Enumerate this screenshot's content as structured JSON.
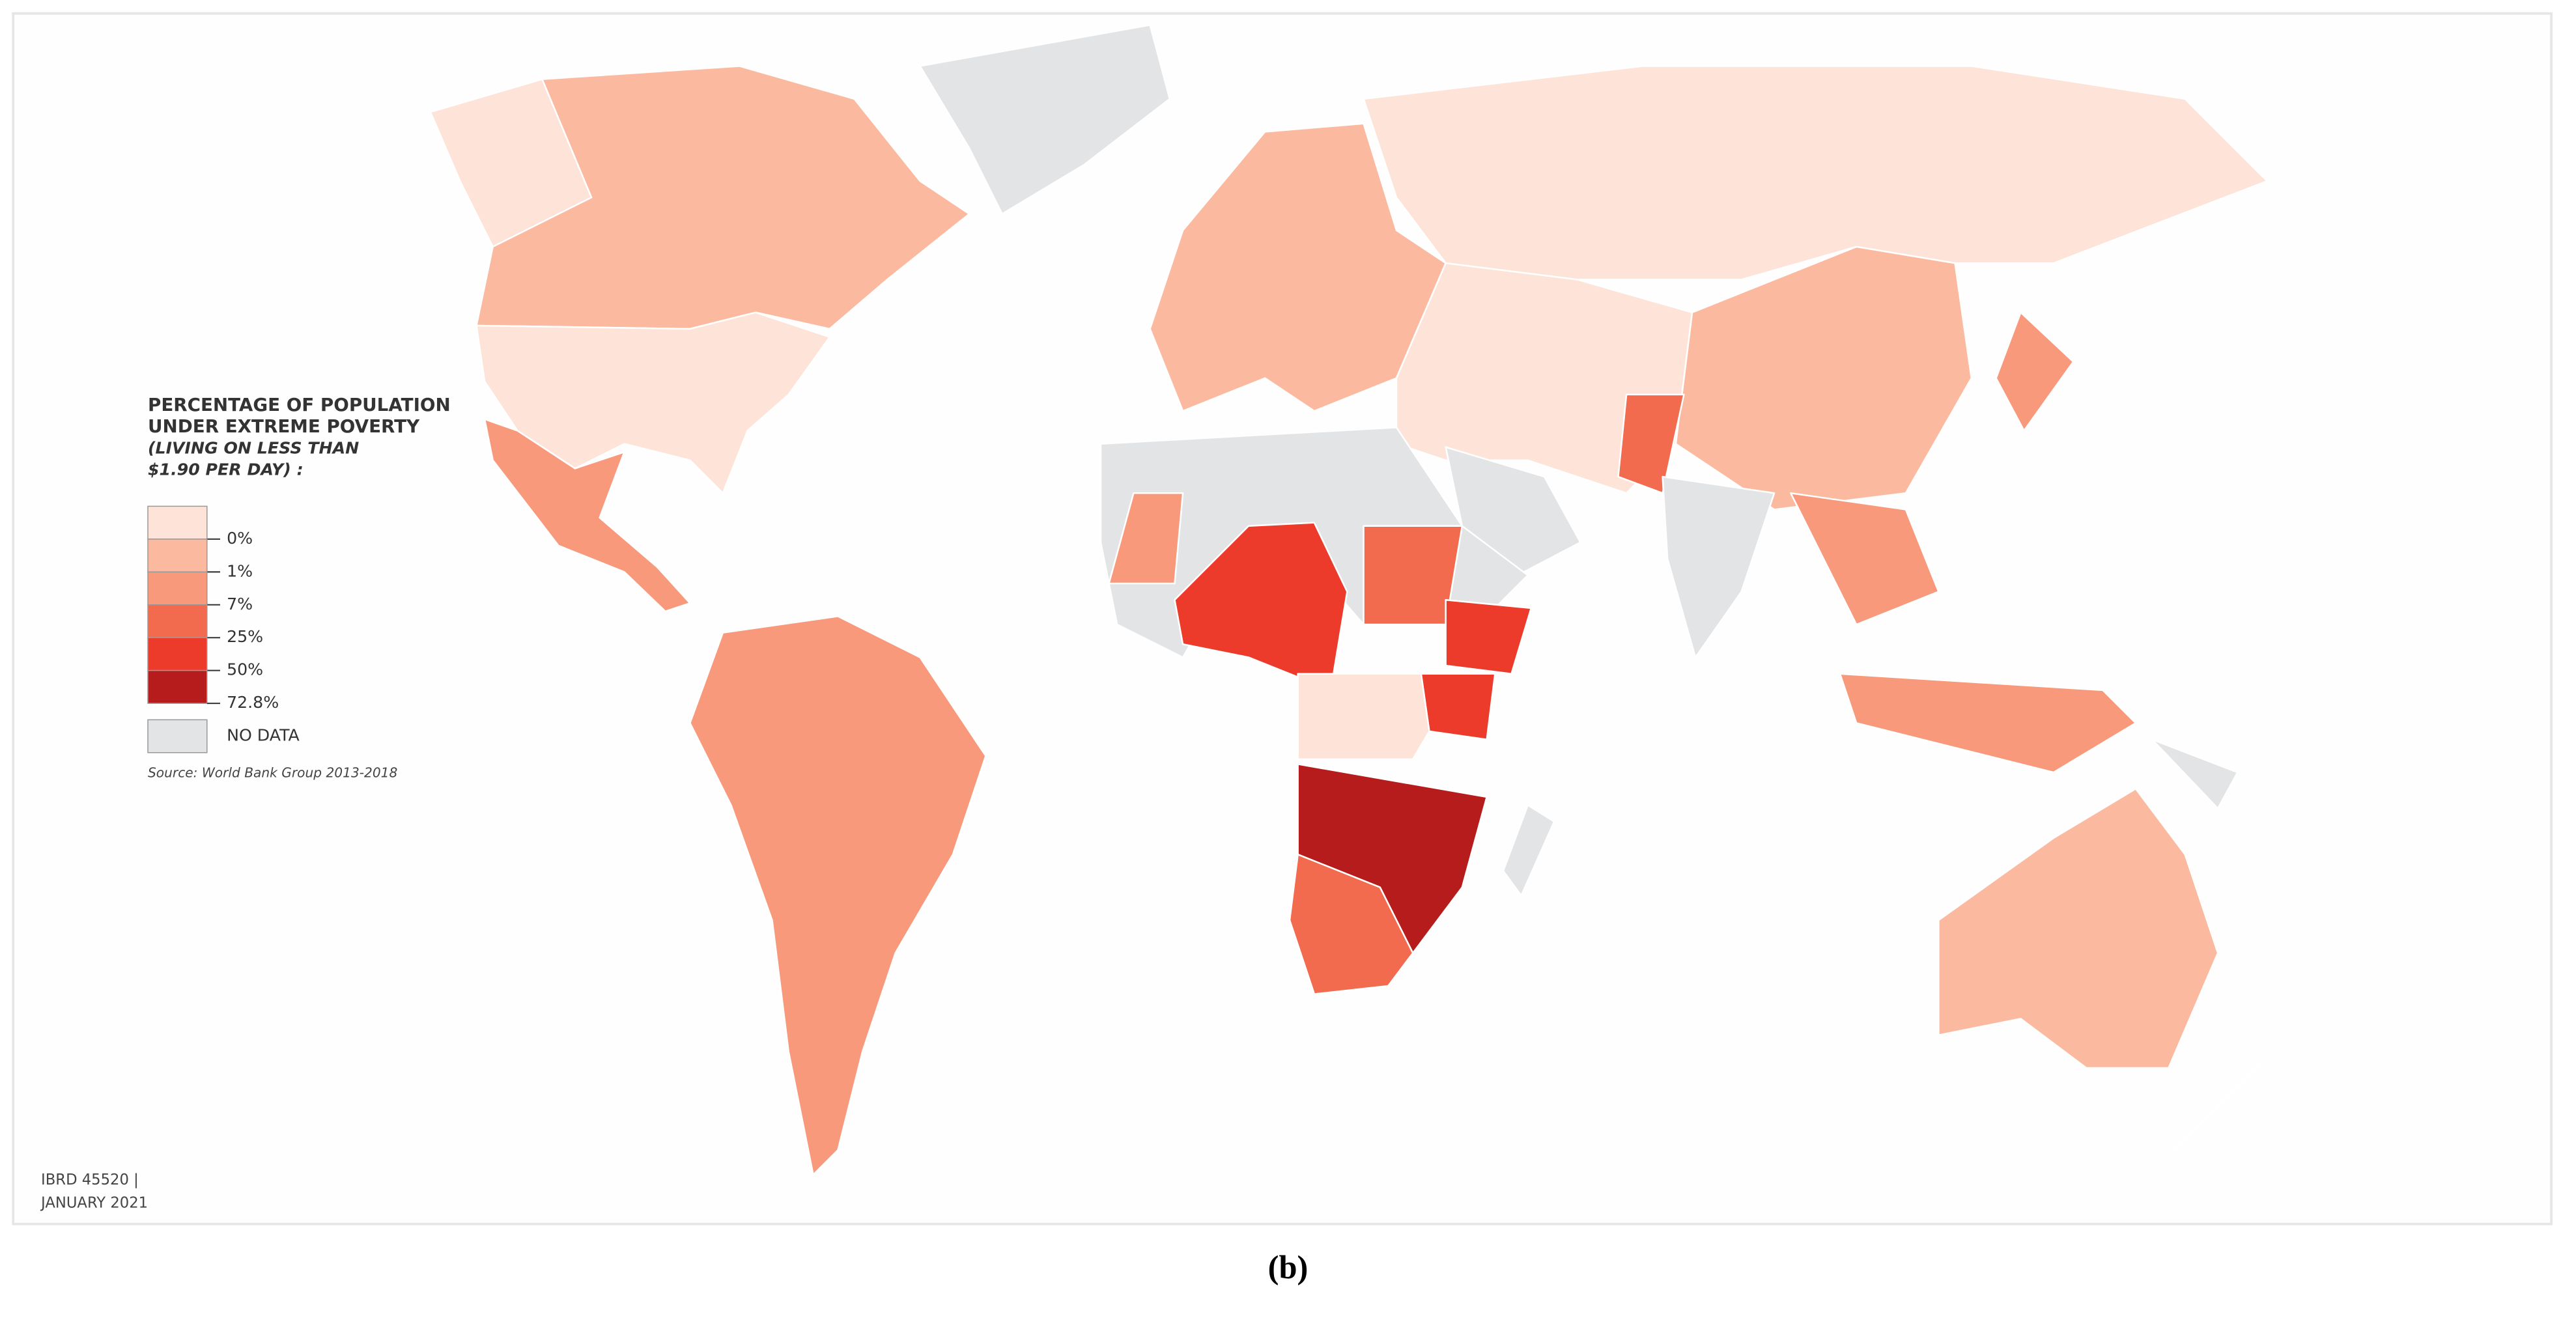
{
  "legend": {
    "title": [
      "PERCENTAGE OF POPULATION",
      "UNDER EXTREME POVERTY"
    ],
    "subtitle": [
      "(LIVING ON LESS THAN",
      "$1.90 PER DAY) :"
    ],
    "classes": [
      {
        "label": "0%",
        "color": "#fde3d8"
      },
      {
        "label": "1%",
        "color": "#fbbaa0"
      },
      {
        "label": "7%",
        "color": "#f8997b"
      },
      {
        "label": "25%",
        "color": "#f26b4e"
      },
      {
        "label": "50%",
        "color": "#ec3b2b"
      },
      {
        "label": "72.8%",
        "color": "#b71c1c"
      }
    ],
    "no_data": {
      "label": "NO DATA",
      "color": "#e2e4e6"
    },
    "source": "Source: World Bank Group 2013-2018"
  },
  "map_id": "IBRD 45520 |",
  "date": "JANUARY 2021",
  "caption": "(b)"
}
